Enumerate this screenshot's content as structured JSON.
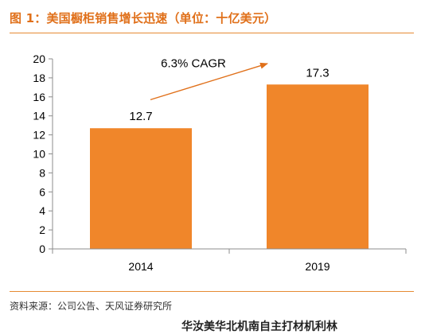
{
  "figure": {
    "title": "图 1：美国橱柜销售增长迅速（单位：十亿美元）",
    "source": "资料来源：公司公告、天风证券研究所",
    "cut_text": "华汝美华北机南自主打材机利林"
  },
  "colors": {
    "bar": "#f0862a",
    "accent": "#e0701a",
    "axis": "#8c8c8c",
    "text": "#000000"
  },
  "chart_data": {
    "type": "bar",
    "title": "",
    "xlabel": "",
    "ylabel": "",
    "categories": [
      "2014",
      "2019"
    ],
    "values": [
      12.7,
      17.3
    ],
    "data_labels": [
      "12.7",
      "17.3"
    ],
    "ylim": [
      0,
      20
    ],
    "yticks": [
      0,
      2,
      4,
      6,
      8,
      10,
      12,
      14,
      16,
      18,
      20
    ],
    "grid": false,
    "annotation": "6.3% CAGR"
  }
}
